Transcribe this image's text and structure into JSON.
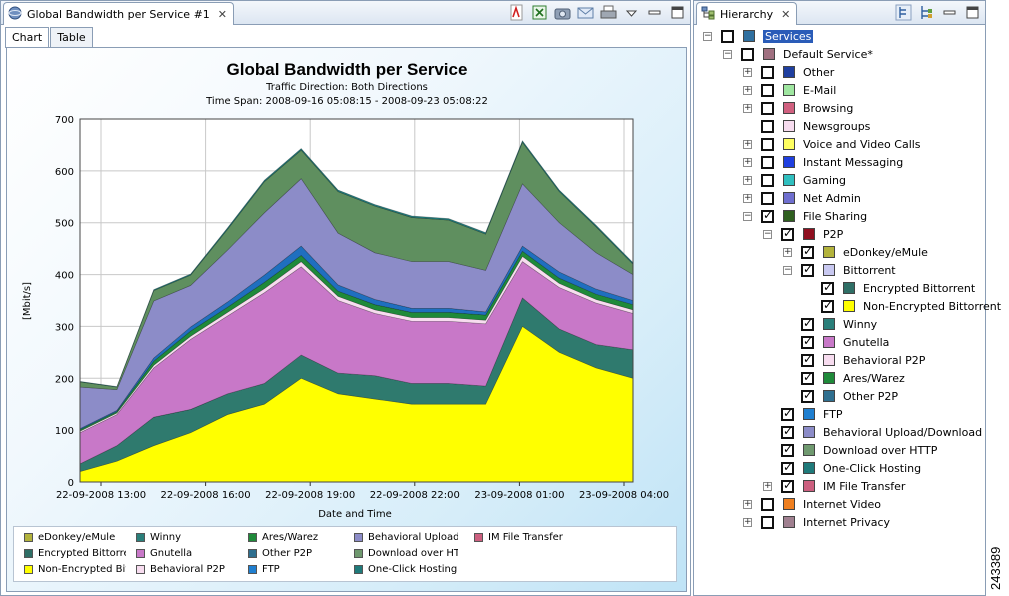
{
  "left_view": {
    "tab_title": "Global Bandwidth per Service #1",
    "subtabs": [
      "Chart",
      "Table"
    ],
    "active_subtab": "Chart",
    "toolbar_icons": [
      "pdf-export-icon",
      "excel-export-icon",
      "camera-snapshot-icon",
      "email-icon",
      "print-icon",
      "view-menu-icon",
      "minimize-icon",
      "maximize-icon"
    ]
  },
  "chart_data": {
    "type": "area",
    "title": "Global Bandwidth per Service",
    "subtitle_direction": "Traffic Direction: Both Directions",
    "subtitle_span": "Time Span: 2008-09-16 05:08:15 - 2008-09-23 05:08:22",
    "xlabel": "Date and Time",
    "ylabel": "[Mbit/s]",
    "ylim": [
      0,
      700
    ],
    "yticks": [
      0,
      100,
      200,
      300,
      400,
      500,
      600,
      700
    ],
    "x_tick_labels": [
      "22-09-2008 13:00",
      "22-09-2008 16:00",
      "22-09-2008 19:00",
      "22-09-2008 22:00",
      "23-09-2008 01:00",
      "23-09-2008 04:00"
    ],
    "grid": true,
    "stacked": true,
    "x": [
      "22-09 10:30",
      "22-09 12:30",
      "22-09 13:30",
      "22-09 15:00",
      "22-09 16:30",
      "22-09 17:00",
      "22-09 17:30",
      "22-09 18:30",
      "22-09 19:30",
      "22-09 21:00",
      "22-09 22:30",
      "23-09 00:00",
      "23-09 00:30",
      "23-09 01:30",
      "23-09 02:30",
      "23-09 04:30"
    ],
    "series": [
      {
        "name": "Non-Encrypted Bittorrent",
        "color": "#ffff00",
        "values": [
          20,
          40,
          70,
          95,
          130,
          150,
          200,
          170,
          160,
          150,
          150,
          150,
          300,
          250,
          220,
          200
        ]
      },
      {
        "name": "Encrypted Bittorrent",
        "color": "#2f7a6e",
        "values": [
          15,
          30,
          55,
          45,
          40,
          40,
          45,
          40,
          45,
          40,
          40,
          35,
          55,
          45,
          45,
          55
        ]
      },
      {
        "name": "Gnutella",
        "color": "#c878c8",
        "values": [
          60,
          60,
          95,
          135,
          150,
          175,
          170,
          140,
          120,
          120,
          120,
          120,
          70,
          80,
          80,
          70
        ]
      },
      {
        "name": "Behavioral P2P",
        "color": "#f7dcef",
        "values": [
          3,
          3,
          5,
          6,
          7,
          8,
          10,
          8,
          7,
          7,
          7,
          7,
          10,
          8,
          7,
          7
        ]
      },
      {
        "name": "Ares/Warez",
        "color": "#1f8a3a",
        "values": [
          3,
          3,
          8,
          10,
          10,
          12,
          12,
          10,
          10,
          10,
          10,
          10,
          10,
          10,
          10,
          10
        ]
      },
      {
        "name": "FTP",
        "color": "#1f6fbf",
        "values": [
          2,
          2,
          6,
          8,
          10,
          14,
          18,
          12,
          10,
          8,
          8,
          6,
          10,
          12,
          10,
          8
        ]
      },
      {
        "name": "Behavioral Upload/Download",
        "color": "#8c8cc8",
        "values": [
          80,
          40,
          110,
          80,
          100,
          120,
          130,
          100,
          90,
          90,
          90,
          80,
          120,
          95,
          70,
          50
        ]
      },
      {
        "name": "Download over HTTP",
        "color": "#5f8f5f",
        "values": [
          10,
          5,
          20,
          20,
          40,
          60,
          55,
          80,
          90,
          85,
          80,
          70,
          80,
          60,
          50,
          20
        ]
      },
      {
        "name": "One-Click Hosting",
        "color": "#1f7a7a",
        "values": [
          1,
          1,
          2,
          2,
          3,
          3,
          3,
          3,
          3,
          3,
          3,
          3,
          3,
          3,
          3,
          3
        ]
      }
    ],
    "legend": {
      "placement": "bottom",
      "items": [
        {
          "label": "eDonkey/eMule",
          "color": "#b3b33c"
        },
        {
          "label": "Encrypted Bittorrent",
          "color": "#2f6f66"
        },
        {
          "label": "Non-Encrypted Bittorrent",
          "color": "#ffff00"
        },
        {
          "label": "Winny",
          "color": "#2a7f7a"
        },
        {
          "label": "Gnutella",
          "color": "#c878c8"
        },
        {
          "label": "Behavioral P2P",
          "color": "#f7dcef"
        },
        {
          "label": "Ares/Warez",
          "color": "#1f8a3a"
        },
        {
          "label": "Other P2P",
          "color": "#2f6f8f"
        },
        {
          "label": "FTP",
          "color": "#1f7fd0"
        },
        {
          "label": "Behavioral Upload/Download",
          "color": "#8c8cc8"
        },
        {
          "label": "Download over HTTP",
          "color": "#6f996f"
        },
        {
          "label": "One-Click Hosting",
          "color": "#1f7a7a"
        },
        {
          "label": "IM File Transfer",
          "color": "#cc5f7f"
        }
      ]
    }
  },
  "right_view": {
    "tab_title": "Hierarchy",
    "toolbar_icons": [
      "collapse-all-icon",
      "filter-icon",
      "minimize-icon",
      "maximize-icon"
    ],
    "tree": [
      {
        "label": "Services",
        "color": "#2f6f9f",
        "selected": true,
        "level": 0,
        "expander": "minus",
        "checked": false
      },
      {
        "label": "Default Service*",
        "color": "#a07080",
        "level": 1,
        "expander": "minus",
        "checked": false
      },
      {
        "label": "Other",
        "color": "#1f3fa0",
        "level": 2,
        "expander": "plus",
        "checked": false
      },
      {
        "label": "E-Mail",
        "color": "#9fe6a0",
        "level": 2,
        "expander": "plus",
        "checked": false
      },
      {
        "label": "Browsing",
        "color": "#d0607f",
        "level": 2,
        "expander": "plus",
        "checked": false
      },
      {
        "label": "Newsgroups",
        "color": "#f7dcef",
        "level": 2,
        "expander": "none",
        "checked": false
      },
      {
        "label": "Voice and Video Calls",
        "color": "#ffff60",
        "level": 2,
        "expander": "plus",
        "checked": false
      },
      {
        "label": "Instant Messaging",
        "color": "#1f3fe0",
        "level": 2,
        "expander": "plus",
        "checked": false
      },
      {
        "label": "Gaming",
        "color": "#2fbfbf",
        "level": 2,
        "expander": "plus",
        "checked": false
      },
      {
        "label": "Net Admin",
        "color": "#6f6fcf",
        "level": 2,
        "expander": "plus",
        "checked": false
      },
      {
        "label": "File Sharing",
        "color": "#2f5f1f",
        "level": 2,
        "expander": "minus",
        "checked": true
      },
      {
        "label": "P2P",
        "color": "#8f0f1f",
        "level": 3,
        "expander": "minus",
        "checked": true
      },
      {
        "label": "eDonkey/eMule",
        "color": "#b3b33c",
        "level": 4,
        "expander": "plus",
        "checked": true
      },
      {
        "label": "Bittorrent",
        "color": "#c8c8f0",
        "level": 4,
        "expander": "minus",
        "checked": true
      },
      {
        "label": "Encrypted Bittorrent",
        "color": "#2f6f66",
        "level": 5,
        "expander": "none",
        "checked": true
      },
      {
        "label": "Non-Encrypted Bittorrent",
        "color": "#ffff00",
        "level": 5,
        "expander": "none",
        "checked": true
      },
      {
        "label": "Winny",
        "color": "#2a7f7a",
        "level": 4,
        "expander": "none",
        "checked": true
      },
      {
        "label": "Gnutella",
        "color": "#c878c8",
        "level": 4,
        "expander": "none",
        "checked": true
      },
      {
        "label": "Behavioral P2P",
        "color": "#f7dcef",
        "level": 4,
        "expander": "none",
        "checked": true
      },
      {
        "label": "Ares/Warez",
        "color": "#1f8a3a",
        "level": 4,
        "expander": "none",
        "checked": true
      },
      {
        "label": "Other P2P",
        "color": "#2f6f8f",
        "level": 4,
        "expander": "none",
        "checked": true
      },
      {
        "label": "FTP",
        "color": "#1f7fd0",
        "level": 3,
        "expander": "none",
        "checked": true
      },
      {
        "label": "Behavioral Upload/Download",
        "color": "#8c8cc8",
        "level": 3,
        "expander": "none",
        "checked": true
      },
      {
        "label": "Download over HTTP",
        "color": "#6f996f",
        "level": 3,
        "expander": "none",
        "checked": true
      },
      {
        "label": "One-Click Hosting",
        "color": "#1f7a7a",
        "level": 3,
        "expander": "none",
        "checked": true
      },
      {
        "label": "IM File Transfer",
        "color": "#cc5f7f",
        "level": 3,
        "expander": "plus",
        "checked": true
      },
      {
        "label": "Internet Video",
        "color": "#ef7f1f",
        "level": 2,
        "expander": "plus",
        "checked": false
      },
      {
        "label": "Internet Privacy",
        "color": "#a08090",
        "level": 2,
        "expander": "plus",
        "checked": false
      }
    ]
  },
  "figure_id": "243389"
}
